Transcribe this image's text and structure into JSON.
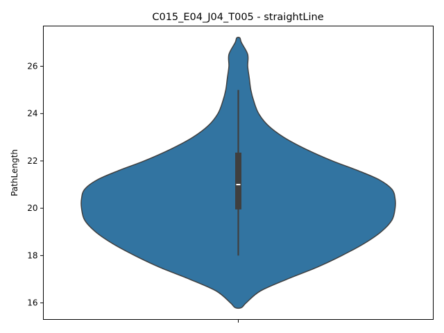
{
  "chart_data": {
    "type": "violin",
    "title": "C015_E04_J04_T005 - straightLine",
    "xlabel": "",
    "ylabel": "PathLength",
    "ylim": [
      15.3,
      27.7
    ],
    "yticks": [
      16,
      18,
      20,
      22,
      24,
      26
    ],
    "grid": false,
    "legend": "none",
    "colors": {
      "fill": "#3274a1",
      "edge": "#3f3f3f",
      "box": "#3f3f3f",
      "median": "#ffffff"
    },
    "series": [
      {
        "stats": {
          "min": 18.0,
          "q1": 19.95,
          "median": 21.0,
          "q3": 22.35,
          "max": 25.0
        },
        "density_profile": {
          "y": [
            15.8,
            16.0,
            16.5,
            17.0,
            17.5,
            18.0,
            18.5,
            19.0,
            19.5,
            20.0,
            20.4,
            20.8,
            21.2,
            21.6,
            22.0,
            22.5,
            23.0,
            23.5,
            24.0,
            24.5,
            25.0,
            25.5,
            26.0,
            26.5,
            27.0,
            27.2
          ],
          "relative_width": [
            0.02,
            0.05,
            0.14,
            0.31,
            0.5,
            0.66,
            0.8,
            0.91,
            0.98,
            1.0,
            1.0,
            0.98,
            0.9,
            0.76,
            0.6,
            0.43,
            0.29,
            0.19,
            0.13,
            0.1,
            0.08,
            0.07,
            0.06,
            0.06,
            0.02,
            0.01
          ]
        }
      }
    ]
  }
}
